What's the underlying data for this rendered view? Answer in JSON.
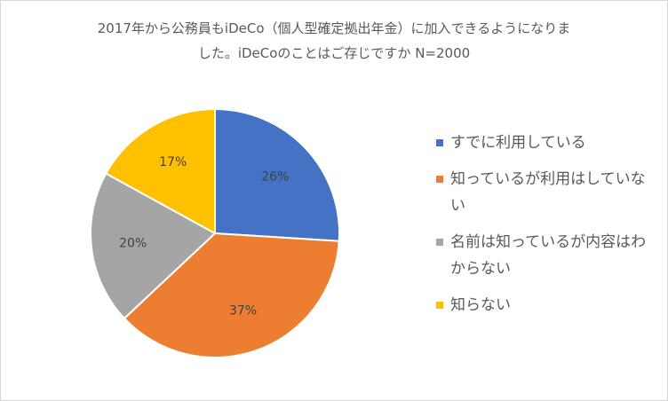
{
  "chart_data": {
    "type": "pie",
    "title_lines": [
      "2017年から公務員もiDeCo（個人型確定拠出年金）に加入できるようになりま",
      "した。iDeCoのことはご存じですか N=2000"
    ],
    "categories": [
      "すでに利用している",
      "知っているが利用はしていない",
      "名前は知っているが内容はわからない",
      "知らない"
    ],
    "values": [
      26,
      37,
      20,
      17
    ],
    "labels": [
      "26%",
      "37%",
      "20%",
      "17%"
    ],
    "colors": [
      "#4472C4",
      "#ED7D31",
      "#A5A5A5",
      "#FFC000"
    ],
    "legend_position": "right"
  }
}
